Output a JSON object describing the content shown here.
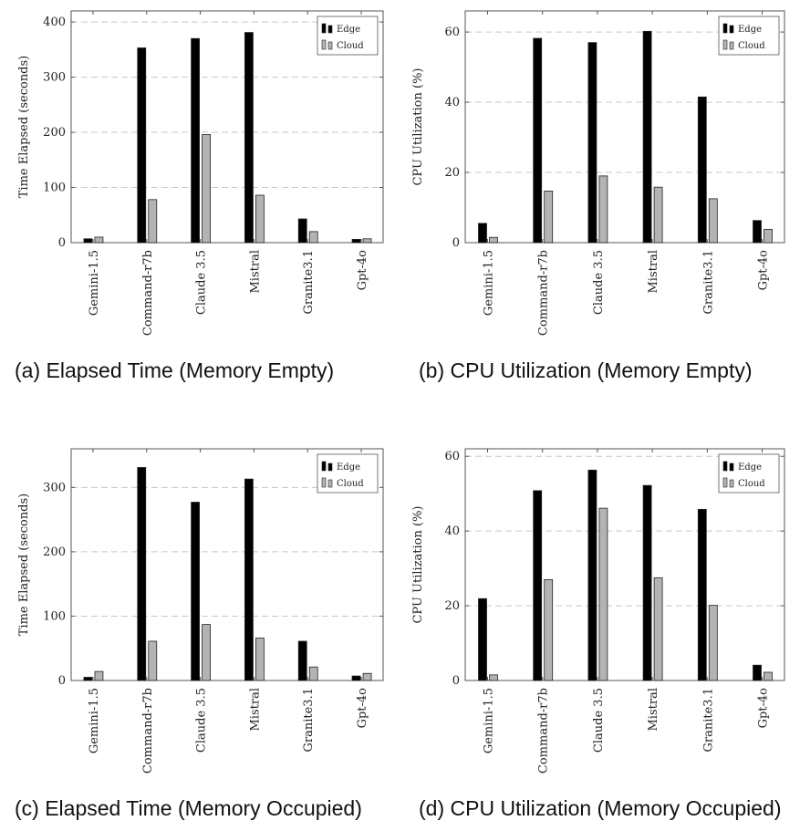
{
  "chart_data": [
    {
      "id": "a",
      "type": "bar",
      "categories": [
        "Gemini-1.5",
        "Command-r7b",
        "Claude 3.5",
        "Mistral",
        "Granite3.1",
        "Gpt-4o"
      ],
      "series": [
        {
          "name": "Edge",
          "color": "#000000",
          "values": [
            7,
            353,
            370,
            381,
            43,
            6
          ]
        },
        {
          "name": "Cloud",
          "color": "#b3b3b3",
          "values": [
            10,
            78,
            196,
            86,
            20,
            7
          ]
        }
      ],
      "ylabel": "Time Elapsed (seconds)",
      "ylim": [
        0,
        420
      ],
      "yticks": [
        0,
        100,
        200,
        300,
        400
      ],
      "grid": true,
      "legend_position": "top-right",
      "caption": "(a) Elapsed Time (Memory Empty)"
    },
    {
      "id": "b",
      "type": "bar",
      "categories": [
        "Gemini-1.5",
        "Command-r7b",
        "Claude 3.5",
        "Mistral",
        "Granite3.1",
        "Gpt-4o"
      ],
      "series": [
        {
          "name": "Edge",
          "color": "#000000",
          "values": [
            5.5,
            58.2,
            57,
            60.2,
            41.5,
            6.3
          ]
        },
        {
          "name": "Cloud",
          "color": "#b3b3b3",
          "values": [
            1.5,
            14.7,
            19,
            15.8,
            12.5,
            3.8
          ]
        }
      ],
      "ylabel": "CPU Utilization (%)",
      "ylim": [
        0,
        66
      ],
      "yticks": [
        0,
        20,
        40,
        60
      ],
      "grid": true,
      "legend_position": "top-right",
      "caption": "(b) CPU Utilization (Memory Empty)"
    },
    {
      "id": "c",
      "type": "bar",
      "categories": [
        "Gemini-1.5",
        "Command-r7b",
        "Claude 3.5",
        "Mistral",
        "Granite3.1",
        "Gpt-4o"
      ],
      "series": [
        {
          "name": "Edge",
          "color": "#000000",
          "values": [
            5,
            331,
            277,
            313,
            61,
            7
          ]
        },
        {
          "name": "Cloud",
          "color": "#b3b3b3",
          "values": [
            14,
            61,
            87,
            66,
            21,
            11
          ]
        }
      ],
      "ylabel": "Time Elapsed (seconds)",
      "ylim": [
        0,
        360
      ],
      "yticks": [
        0,
        100,
        200,
        300
      ],
      "grid": true,
      "legend_position": "top-right",
      "caption": "(c) Elapsed Time (Memory Occupied)"
    },
    {
      "id": "d",
      "type": "bar",
      "categories": [
        "Gemini-1.5",
        "Command-r7b",
        "Claude 3.5",
        "Mistral",
        "Granite3.1",
        "Gpt-4o"
      ],
      "series": [
        {
          "name": "Edge",
          "color": "#000000",
          "values": [
            21.9,
            50.8,
            56.3,
            52.2,
            45.8,
            4.1
          ]
        },
        {
          "name": "Cloud",
          "color": "#b3b3b3",
          "values": [
            1.5,
            27,
            46.1,
            27.5,
            20.1,
            2.2
          ]
        }
      ],
      "ylabel": "CPU Utilization (%)",
      "ylim": [
        0,
        62
      ],
      "yticks": [
        0,
        20,
        40,
        60
      ],
      "grid": true,
      "legend_position": "top-right",
      "caption": "(d) CPU Utilization (Memory Occupied)"
    }
  ]
}
